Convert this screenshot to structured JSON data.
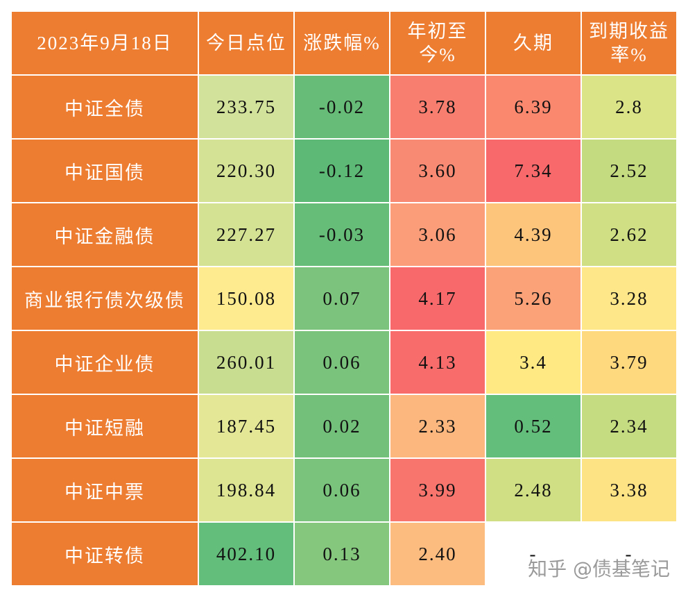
{
  "table": {
    "header": [
      "2023年9月18日",
      "今日点位",
      "涨跌幅%",
      "年初至今%",
      "久期",
      "到期收益率%"
    ],
    "rows": [
      [
        "中证全债",
        "233.75",
        "-0.02",
        "3.78",
        "6.39",
        "2.8"
      ],
      [
        "中证国债",
        "220.30",
        "-0.12",
        "3.60",
        "7.34",
        "2.52"
      ],
      [
        "中证金融债",
        "227.27",
        "-0.03",
        "3.06",
        "4.39",
        "2.62"
      ],
      [
        "商业银行债次级债",
        "150.08",
        "0.07",
        "4.17",
        "5.26",
        "3.28"
      ],
      [
        "中证企业债",
        "260.01",
        "0.06",
        "4.13",
        "3.4",
        "3.79"
      ],
      [
        "中证短融",
        "187.45",
        "0.02",
        "2.33",
        "0.52",
        "2.34"
      ],
      [
        "中证中票",
        "198.84",
        "0.06",
        "3.99",
        "2.48",
        "3.38"
      ],
      [
        "中证转债",
        "402.10",
        "0.13",
        "2.40",
        "-",
        "-"
      ]
    ],
    "header_color": "#ed7d31",
    "colors": [
      [
        "#d2e29a",
        "#67bd78",
        "#f87e70",
        "#f9886f",
        "#dbe486"
      ],
      [
        "#d4e296",
        "#5cb976",
        "#f88a73",
        "#f8696b",
        "#c4db7f"
      ],
      [
        "#d4e294",
        "#66bd78",
        "#fa9d78",
        "#fdc47c",
        "#d0df84"
      ],
      [
        "#feeb8f",
        "#7cc47d",
        "#f8696b",
        "#fba279",
        "#fde788"
      ],
      [
        "#c8dd8f",
        "#79c37c",
        "#f86c6c",
        "#fee983",
        "#fed97e"
      ],
      [
        "#e4e796",
        "#72c07a",
        "#fbb77e",
        "#63be7b",
        "#c6dc80"
      ],
      [
        "#dde592",
        "#79c37c",
        "#f8756e",
        "#d0df83",
        "#fee385"
      ],
      [
        "#63be7b",
        "#84c77d",
        "#fcbb7f",
        "#ffffff",
        "#ffffff"
      ]
    ]
  },
  "watermark": "知乎 @债基笔记"
}
